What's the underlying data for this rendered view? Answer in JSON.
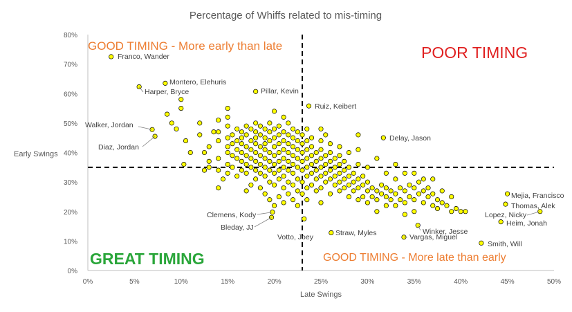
{
  "chart_data": {
    "type": "scatter",
    "title": "Percentage of Whiffs related to mis-timing",
    "xlabel": "Late Swings",
    "ylabel": "Early Swings",
    "xlim": [
      0,
      0.5
    ],
    "ylim": [
      0,
      0.8
    ],
    "x_ticks": [
      "0%",
      "5%",
      "10%",
      "15%",
      "20%",
      "25%",
      "30%",
      "35%",
      "40%",
      "45%",
      "50%"
    ],
    "y_ticks": [
      "0%",
      "10%",
      "20%",
      "30%",
      "40%",
      "50%",
      "60%",
      "70%",
      "80%"
    ],
    "grid": false,
    "reference_lines": {
      "x": 0.23,
      "y": 0.35
    },
    "marker_color": "#ffff00",
    "quadrant_labels": {
      "top_left": "GOOD TIMING - More early than late",
      "top_right": "POOR TIMING",
      "bottom_left": "GREAT TIMING",
      "bottom_right": "GOOD TIMING - More late than early"
    },
    "labeled_points": [
      {
        "name": "Franco, Wander",
        "x": 0.025,
        "y": 0.725
      },
      {
        "name": "Montero, Elehuris",
        "x": 0.083,
        "y": 0.635
      },
      {
        "name": "Harper, Bryce",
        "x": 0.055,
        "y": 0.623
      },
      {
        "name": "Pillar, Kevin",
        "x": 0.18,
        "y": 0.607
      },
      {
        "name": "Ruiz, Keibert",
        "x": 0.237,
        "y": 0.558
      },
      {
        "name": "Walker, Jordan",
        "x": 0.069,
        "y": 0.478
      },
      {
        "name": "Diaz, Jordan",
        "x": 0.072,
        "y": 0.455
      },
      {
        "name": "Delay, Jason",
        "x": 0.317,
        "y": 0.45
      },
      {
        "name": "Mejia, Francisco",
        "x": 0.45,
        "y": 0.26
      },
      {
        "name": "Thomas, Alek",
        "x": 0.448,
        "y": 0.225
      },
      {
        "name": "Lopez, Nicky",
        "x": 0.485,
        "y": 0.2
      },
      {
        "name": "Heim, Jonah",
        "x": 0.443,
        "y": 0.165
      },
      {
        "name": "Clemens, Kody",
        "x": 0.198,
        "y": 0.198
      },
      {
        "name": "Bleday, JJ",
        "x": 0.197,
        "y": 0.18
      },
      {
        "name": "Votto, Joey",
        "x": 0.232,
        "y": 0.175
      },
      {
        "name": "Straw, Myles",
        "x": 0.261,
        "y": 0.128
      },
      {
        "name": "Winker, Jesse",
        "x": 0.354,
        "y": 0.153
      },
      {
        "name": "Vargas, Miguel",
        "x": 0.339,
        "y": 0.113
      },
      {
        "name": "Smith, Will",
        "x": 0.422,
        "y": 0.093
      }
    ],
    "points": [
      [
        0.1,
        0.58
      ],
      [
        0.09,
        0.5
      ],
      [
        0.085,
        0.53
      ],
      [
        0.1,
        0.55
      ],
      [
        0.095,
        0.48
      ],
      [
        0.105,
        0.44
      ],
      [
        0.11,
        0.4
      ],
      [
        0.103,
        0.36
      ],
      [
        0.12,
        0.46
      ],
      [
        0.12,
        0.5
      ],
      [
        0.125,
        0.4
      ],
      [
        0.125,
        0.34
      ],
      [
        0.13,
        0.35
      ],
      [
        0.13,
        0.42
      ],
      [
        0.135,
        0.47
      ],
      [
        0.13,
        0.37
      ],
      [
        0.14,
        0.51
      ],
      [
        0.14,
        0.47
      ],
      [
        0.14,
        0.44
      ],
      [
        0.14,
        0.38
      ],
      [
        0.14,
        0.34
      ],
      [
        0.145,
        0.31
      ],
      [
        0.14,
        0.28
      ],
      [
        0.15,
        0.55
      ],
      [
        0.15,
        0.52
      ],
      [
        0.15,
        0.49
      ],
      [
        0.15,
        0.45
      ],
      [
        0.15,
        0.42
      ],
      [
        0.15,
        0.4
      ],
      [
        0.15,
        0.36
      ],
      [
        0.15,
        0.33
      ],
      [
        0.155,
        0.46
      ],
      [
        0.155,
        0.43
      ],
      [
        0.155,
        0.39
      ],
      [
        0.155,
        0.35
      ],
      [
        0.16,
        0.48
      ],
      [
        0.16,
        0.44
      ],
      [
        0.16,
        0.41
      ],
      [
        0.16,
        0.38
      ],
      [
        0.16,
        0.32
      ],
      [
        0.165,
        0.47
      ],
      [
        0.165,
        0.45
      ],
      [
        0.165,
        0.43
      ],
      [
        0.165,
        0.4
      ],
      [
        0.165,
        0.37
      ],
      [
        0.165,
        0.34
      ],
      [
        0.17,
        0.49
      ],
      [
        0.17,
        0.46
      ],
      [
        0.17,
        0.42
      ],
      [
        0.17,
        0.39
      ],
      [
        0.17,
        0.36
      ],
      [
        0.17,
        0.33
      ],
      [
        0.17,
        0.27
      ],
      [
        0.175,
        0.48
      ],
      [
        0.175,
        0.44
      ],
      [
        0.175,
        0.41
      ],
      [
        0.175,
        0.38
      ],
      [
        0.175,
        0.35
      ],
      [
        0.175,
        0.29
      ],
      [
        0.18,
        0.5
      ],
      [
        0.18,
        0.47
      ],
      [
        0.18,
        0.45
      ],
      [
        0.18,
        0.43
      ],
      [
        0.18,
        0.4
      ],
      [
        0.18,
        0.37
      ],
      [
        0.18,
        0.34
      ],
      [
        0.18,
        0.31
      ],
      [
        0.185,
        0.49
      ],
      [
        0.185,
        0.46
      ],
      [
        0.185,
        0.42
      ],
      [
        0.185,
        0.39
      ],
      [
        0.185,
        0.36
      ],
      [
        0.185,
        0.33
      ],
      [
        0.185,
        0.28
      ],
      [
        0.19,
        0.48
      ],
      [
        0.19,
        0.45
      ],
      [
        0.19,
        0.43
      ],
      [
        0.19,
        0.41
      ],
      [
        0.19,
        0.38
      ],
      [
        0.19,
        0.35
      ],
      [
        0.19,
        0.32
      ],
      [
        0.19,
        0.26
      ],
      [
        0.195,
        0.5
      ],
      [
        0.195,
        0.47
      ],
      [
        0.195,
        0.44
      ],
      [
        0.195,
        0.4
      ],
      [
        0.195,
        0.37
      ],
      [
        0.195,
        0.34
      ],
      [
        0.195,
        0.3
      ],
      [
        0.195,
        0.24
      ],
      [
        0.2,
        0.54
      ],
      [
        0.2,
        0.48
      ],
      [
        0.2,
        0.45
      ],
      [
        0.2,
        0.42
      ],
      [
        0.2,
        0.39
      ],
      [
        0.2,
        0.36
      ],
      [
        0.2,
        0.33
      ],
      [
        0.2,
        0.29
      ],
      [
        0.2,
        0.22
      ],
      [
        0.205,
        0.49
      ],
      [
        0.205,
        0.46
      ],
      [
        0.205,
        0.43
      ],
      [
        0.205,
        0.4
      ],
      [
        0.205,
        0.37
      ],
      [
        0.205,
        0.34
      ],
      [
        0.205,
        0.31
      ],
      [
        0.205,
        0.25
      ],
      [
        0.21,
        0.52
      ],
      [
        0.21,
        0.47
      ],
      [
        0.21,
        0.44
      ],
      [
        0.21,
        0.41
      ],
      [
        0.21,
        0.38
      ],
      [
        0.21,
        0.35
      ],
      [
        0.21,
        0.32
      ],
      [
        0.21,
        0.28
      ],
      [
        0.21,
        0.23
      ],
      [
        0.215,
        0.5
      ],
      [
        0.215,
        0.46
      ],
      [
        0.215,
        0.43
      ],
      [
        0.215,
        0.4
      ],
      [
        0.215,
        0.37
      ],
      [
        0.215,
        0.34
      ],
      [
        0.215,
        0.3
      ],
      [
        0.215,
        0.26
      ],
      [
        0.22,
        0.48
      ],
      [
        0.22,
        0.45
      ],
      [
        0.22,
        0.42
      ],
      [
        0.22,
        0.39
      ],
      [
        0.22,
        0.36
      ],
      [
        0.22,
        0.33
      ],
      [
        0.22,
        0.29
      ],
      [
        0.22,
        0.24
      ],
      [
        0.225,
        0.47
      ],
      [
        0.225,
        0.44
      ],
      [
        0.225,
        0.41
      ],
      [
        0.225,
        0.38
      ],
      [
        0.225,
        0.35
      ],
      [
        0.225,
        0.31
      ],
      [
        0.225,
        0.27
      ],
      [
        0.225,
        0.22
      ],
      [
        0.23,
        0.46
      ],
      [
        0.23,
        0.43
      ],
      [
        0.23,
        0.4
      ],
      [
        0.23,
        0.37
      ],
      [
        0.23,
        0.34
      ],
      [
        0.23,
        0.3
      ],
      [
        0.23,
        0.26
      ],
      [
        0.235,
        0.48
      ],
      [
        0.235,
        0.44
      ],
      [
        0.235,
        0.41
      ],
      [
        0.235,
        0.38
      ],
      [
        0.235,
        0.35
      ],
      [
        0.235,
        0.32
      ],
      [
        0.235,
        0.28
      ],
      [
        0.235,
        0.24
      ],
      [
        0.24,
        0.45
      ],
      [
        0.24,
        0.42
      ],
      [
        0.24,
        0.39
      ],
      [
        0.24,
        0.36
      ],
      [
        0.24,
        0.33
      ],
      [
        0.24,
        0.29
      ],
      [
        0.245,
        0.4
      ],
      [
        0.245,
        0.37
      ],
      [
        0.245,
        0.34
      ],
      [
        0.245,
        0.31
      ],
      [
        0.245,
        0.27
      ],
      [
        0.25,
        0.48
      ],
      [
        0.25,
        0.44
      ],
      [
        0.25,
        0.41
      ],
      [
        0.25,
        0.38
      ],
      [
        0.25,
        0.35
      ],
      [
        0.25,
        0.32
      ],
      [
        0.25,
        0.28
      ],
      [
        0.25,
        0.23
      ],
      [
        0.255,
        0.46
      ],
      [
        0.255,
        0.39
      ],
      [
        0.255,
        0.36
      ],
      [
        0.255,
        0.33
      ],
      [
        0.255,
        0.3
      ],
      [
        0.26,
        0.43
      ],
      [
        0.26,
        0.4
      ],
      [
        0.26,
        0.37
      ],
      [
        0.26,
        0.34
      ],
      [
        0.26,
        0.31
      ],
      [
        0.26,
        0.26
      ],
      [
        0.265,
        0.38
      ],
      [
        0.265,
        0.35
      ],
      [
        0.265,
        0.32
      ],
      [
        0.265,
        0.29
      ],
      [
        0.27,
        0.42
      ],
      [
        0.27,
        0.39
      ],
      [
        0.27,
        0.36
      ],
      [
        0.27,
        0.33
      ],
      [
        0.27,
        0.3
      ],
      [
        0.27,
        0.27
      ],
      [
        0.275,
        0.37
      ],
      [
        0.275,
        0.34
      ],
      [
        0.275,
        0.31
      ],
      [
        0.275,
        0.28
      ],
      [
        0.28,
        0.4
      ],
      [
        0.28,
        0.35
      ],
      [
        0.28,
        0.32
      ],
      [
        0.28,
        0.29
      ],
      [
        0.28,
        0.25
      ],
      [
        0.285,
        0.33
      ],
      [
        0.285,
        0.3
      ],
      [
        0.285,
        0.27
      ],
      [
        0.29,
        0.46
      ],
      [
        0.29,
        0.41
      ],
      [
        0.29,
        0.36
      ],
      [
        0.29,
        0.31
      ],
      [
        0.29,
        0.28
      ],
      [
        0.29,
        0.24
      ],
      [
        0.295,
        0.32
      ],
      [
        0.295,
        0.29
      ],
      [
        0.295,
        0.25
      ],
      [
        0.3,
        0.35
      ],
      [
        0.3,
        0.3
      ],
      [
        0.3,
        0.27
      ],
      [
        0.3,
        0.23
      ],
      [
        0.305,
        0.28
      ],
      [
        0.305,
        0.25
      ],
      [
        0.31,
        0.38
      ],
      [
        0.31,
        0.27
      ],
      [
        0.31,
        0.24
      ],
      [
        0.31,
        0.2
      ],
      [
        0.315,
        0.29
      ],
      [
        0.315,
        0.26
      ],
      [
        0.32,
        0.33
      ],
      [
        0.32,
        0.28
      ],
      [
        0.32,
        0.25
      ],
      [
        0.32,
        0.22
      ],
      [
        0.325,
        0.27
      ],
      [
        0.325,
        0.24
      ],
      [
        0.33,
        0.36
      ],
      [
        0.33,
        0.31
      ],
      [
        0.33,
        0.26
      ],
      [
        0.33,
        0.22
      ],
      [
        0.335,
        0.28
      ],
      [
        0.335,
        0.24
      ],
      [
        0.34,
        0.33
      ],
      [
        0.34,
        0.27
      ],
      [
        0.34,
        0.23
      ],
      [
        0.34,
        0.19
      ],
      [
        0.345,
        0.29
      ],
      [
        0.345,
        0.25
      ],
      [
        0.35,
        0.33
      ],
      [
        0.35,
        0.28
      ],
      [
        0.35,
        0.24
      ],
      [
        0.35,
        0.2
      ],
      [
        0.355,
        0.3
      ],
      [
        0.355,
        0.26
      ],
      [
        0.36,
        0.31
      ],
      [
        0.36,
        0.27
      ],
      [
        0.36,
        0.23
      ],
      [
        0.365,
        0.28
      ],
      [
        0.365,
        0.25
      ],
      [
        0.37,
        0.31
      ],
      [
        0.37,
        0.26
      ],
      [
        0.37,
        0.22
      ],
      [
        0.375,
        0.24
      ],
      [
        0.375,
        0.21
      ],
      [
        0.38,
        0.27
      ],
      [
        0.38,
        0.23
      ],
      [
        0.385,
        0.22
      ],
      [
        0.39,
        0.25
      ],
      [
        0.39,
        0.2
      ],
      [
        0.395,
        0.21
      ],
      [
        0.4,
        0.2
      ],
      [
        0.405,
        0.2
      ]
    ]
  }
}
